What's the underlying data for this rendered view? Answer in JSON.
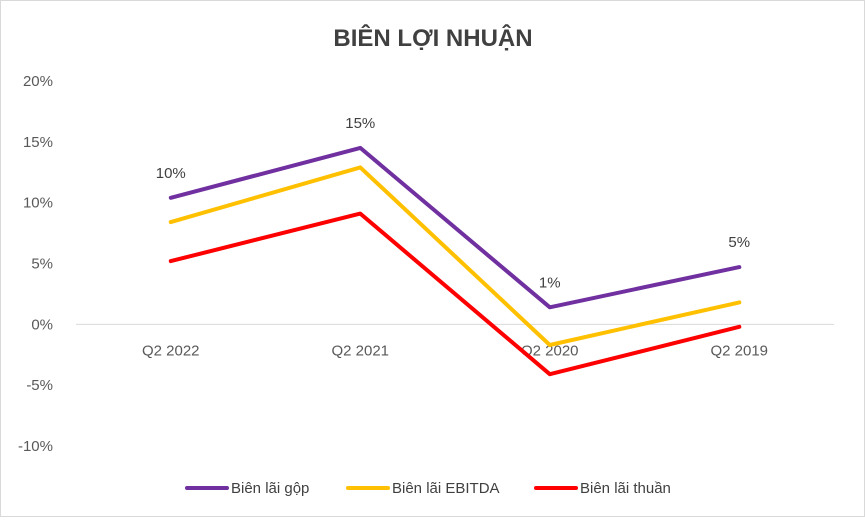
{
  "chart_data": {
    "type": "line",
    "title": "BIÊN LỢI NHUẬN",
    "xlabel": "",
    "ylabel": "",
    "categories": [
      "Q2 2022",
      "Q2 2021",
      "Q2 2020",
      "Q2 2019"
    ],
    "ylim": [
      -0.1,
      0.2
    ],
    "yticks": [
      0.2,
      0.15,
      0.1,
      0.05,
      0.0,
      -0.05,
      -0.1
    ],
    "ytick_labels": [
      "20%",
      "15%",
      "10%",
      "5%",
      "0%",
      "-5%",
      "-10%"
    ],
    "grid": false,
    "legend_position": "bottom",
    "series": [
      {
        "name": "Biên lãi gộp",
        "color": "#7030a0",
        "values": [
          0.104,
          0.145,
          0.014,
          0.047
        ],
        "labels": [
          "10%",
          "15%",
          "1%",
          "5%"
        ]
      },
      {
        "name": "Biên lãi EBITDA",
        "color": "#ffc000",
        "values": [
          0.084,
          0.129,
          -0.017,
          0.018
        ],
        "labels": []
      },
      {
        "name": "Biên lãi thuần",
        "color": "#ff0000",
        "values": [
          0.052,
          0.091,
          -0.041,
          -0.002
        ],
        "labels": []
      }
    ]
  }
}
